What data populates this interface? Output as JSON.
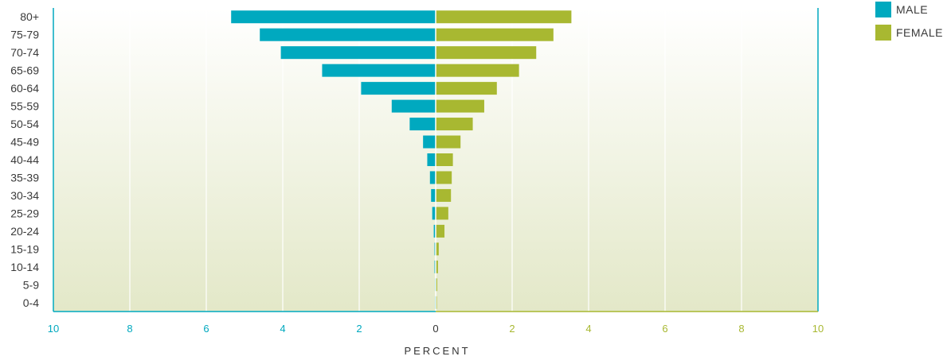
{
  "chart_data": {
    "type": "bar",
    "orientation": "horizontal",
    "xlabel": "PERCENT",
    "categories": [
      "80+",
      "75-79",
      "70-74",
      "65-69",
      "60-64",
      "55-59",
      "50-54",
      "45-49",
      "40-44",
      "35-39",
      "30-34",
      "25-29",
      "20-24",
      "15-19",
      "10-14",
      "5-9",
      "0-4"
    ],
    "series": [
      {
        "name": "MALE",
        "color": "#00a9bf",
        "values": [
          5.35,
          4.6,
          4.05,
          2.97,
          1.95,
          1.15,
          0.68,
          0.33,
          0.22,
          0.15,
          0.12,
          0.09,
          0.05,
          0.03,
          0.03,
          0.02,
          0.02
        ]
      },
      {
        "name": "FEMALE",
        "color": "#a8b831",
        "values": [
          3.55,
          3.08,
          2.63,
          2.18,
          1.6,
          1.27,
          0.97,
          0.65,
          0.45,
          0.42,
          0.4,
          0.33,
          0.23,
          0.08,
          0.06,
          0.04,
          0.03
        ]
      }
    ],
    "xlim": [
      -10,
      10
    ],
    "xticks_left": [
      "10",
      "8",
      "6",
      "4",
      "2",
      "0"
    ],
    "xticks_right": [
      "2",
      "4",
      "6",
      "8",
      "10"
    ],
    "grid": "vertical",
    "legend_position": "top-right"
  }
}
